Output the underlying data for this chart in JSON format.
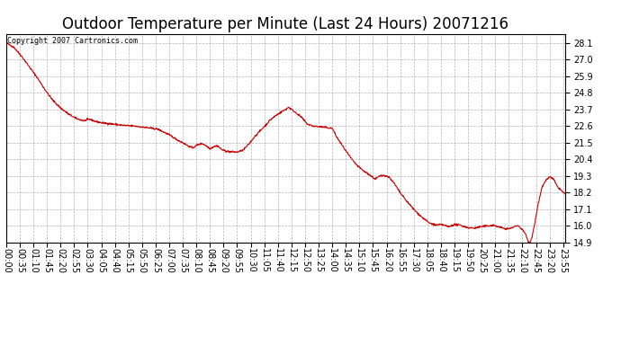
{
  "title": "Outdoor Temperature per Minute (Last 24 Hours) 20071216",
  "copyright_text": "Copyright 2007 Cartronics.com",
  "line_color": "#cc0000",
  "background_color": "#ffffff",
  "grid_color": "#aaaaaa",
  "ylim": [
    14.9,
    28.7
  ],
  "yticks": [
    14.9,
    16.0,
    17.1,
    18.2,
    19.3,
    20.4,
    21.5,
    22.6,
    23.7,
    24.8,
    25.9,
    27.0,
    28.1
  ],
  "title_fontsize": 12,
  "tick_fontsize": 7,
  "ylabel_fontsize": 9,
  "x_tick_labels": [
    "00:00",
    "00:35",
    "01:10",
    "01:45",
    "02:20",
    "02:55",
    "03:30",
    "04:05",
    "04:40",
    "05:15",
    "05:50",
    "06:25",
    "07:00",
    "07:35",
    "08:10",
    "08:45",
    "09:20",
    "09:55",
    "10:30",
    "11:05",
    "11:40",
    "12:15",
    "12:50",
    "13:25",
    "14:00",
    "14:35",
    "15:10",
    "15:45",
    "16:20",
    "16:55",
    "17:30",
    "18:05",
    "18:40",
    "19:15",
    "19:50",
    "20:25",
    "21:00",
    "21:35",
    "22:10",
    "22:45",
    "23:20",
    "23:55"
  ],
  "keypoints": [
    [
      0,
      28.1
    ],
    [
      20,
      27.8
    ],
    [
      40,
      27.2
    ],
    [
      60,
      26.5
    ],
    [
      80,
      25.8
    ],
    [
      100,
      25.0
    ],
    [
      120,
      24.3
    ],
    [
      140,
      23.8
    ],
    [
      160,
      23.4
    ],
    [
      180,
      23.1
    ],
    [
      200,
      22.95
    ],
    [
      215,
      23.05
    ],
    [
      230,
      22.9
    ],
    [
      250,
      22.8
    ],
    [
      270,
      22.75
    ],
    [
      300,
      22.65
    ],
    [
      330,
      22.6
    ],
    [
      360,
      22.5
    ],
    [
      390,
      22.4
    ],
    [
      410,
      22.15
    ],
    [
      425,
      21.95
    ],
    [
      440,
      21.7
    ],
    [
      455,
      21.5
    ],
    [
      468,
      21.3
    ],
    [
      480,
      21.15
    ],
    [
      492,
      21.35
    ],
    [
      505,
      21.45
    ],
    [
      515,
      21.3
    ],
    [
      525,
      21.1
    ],
    [
      535,
      21.25
    ],
    [
      545,
      21.3
    ],
    [
      555,
      21.05
    ],
    [
      565,
      20.95
    ],
    [
      580,
      20.9
    ],
    [
      595,
      20.88
    ],
    [
      610,
      21.0
    ],
    [
      625,
      21.4
    ],
    [
      640,
      21.9
    ],
    [
      655,
      22.3
    ],
    [
      668,
      22.65
    ],
    [
      680,
      23.0
    ],
    [
      695,
      23.3
    ],
    [
      710,
      23.55
    ],
    [
      720,
      23.7
    ],
    [
      728,
      23.85
    ],
    [
      735,
      23.7
    ],
    [
      748,
      23.45
    ],
    [
      760,
      23.2
    ],
    [
      775,
      22.75
    ],
    [
      790,
      22.6
    ],
    [
      810,
      22.55
    ],
    [
      825,
      22.5
    ],
    [
      840,
      22.45
    ],
    [
      852,
      21.85
    ],
    [
      865,
      21.35
    ],
    [
      878,
      20.85
    ],
    [
      892,
      20.35
    ],
    [
      906,
      19.95
    ],
    [
      920,
      19.65
    ],
    [
      935,
      19.4
    ],
    [
      950,
      19.1
    ],
    [
      963,
      19.3
    ],
    [
      975,
      19.35
    ],
    [
      988,
      19.2
    ],
    [
      1000,
      18.8
    ],
    [
      1015,
      18.2
    ],
    [
      1030,
      17.7
    ],
    [
      1050,
      17.1
    ],
    [
      1070,
      16.6
    ],
    [
      1090,
      16.2
    ],
    [
      1108,
      16.05
    ],
    [
      1122,
      16.1
    ],
    [
      1140,
      15.95
    ],
    [
      1155,
      16.1
    ],
    [
      1170,
      16.05
    ],
    [
      1188,
      15.9
    ],
    [
      1205,
      15.85
    ],
    [
      1222,
      15.95
    ],
    [
      1240,
      16.0
    ],
    [
      1255,
      16.05
    ],
    [
      1268,
      15.95
    ],
    [
      1280,
      15.85
    ],
    [
      1293,
      15.8
    ],
    [
      1305,
      15.9
    ],
    [
      1318,
      16.05
    ],
    [
      1328,
      15.8
    ],
    [
      1338,
      15.5
    ],
    [
      1344,
      15.0
    ],
    [
      1349,
      14.9
    ],
    [
      1354,
      15.2
    ],
    [
      1362,
      16.2
    ],
    [
      1371,
      17.5
    ],
    [
      1380,
      18.5
    ],
    [
      1390,
      19.0
    ],
    [
      1400,
      19.25
    ],
    [
      1410,
      19.1
    ],
    [
      1420,
      18.6
    ],
    [
      1430,
      18.35
    ],
    [
      1440,
      18.1
    ]
  ]
}
